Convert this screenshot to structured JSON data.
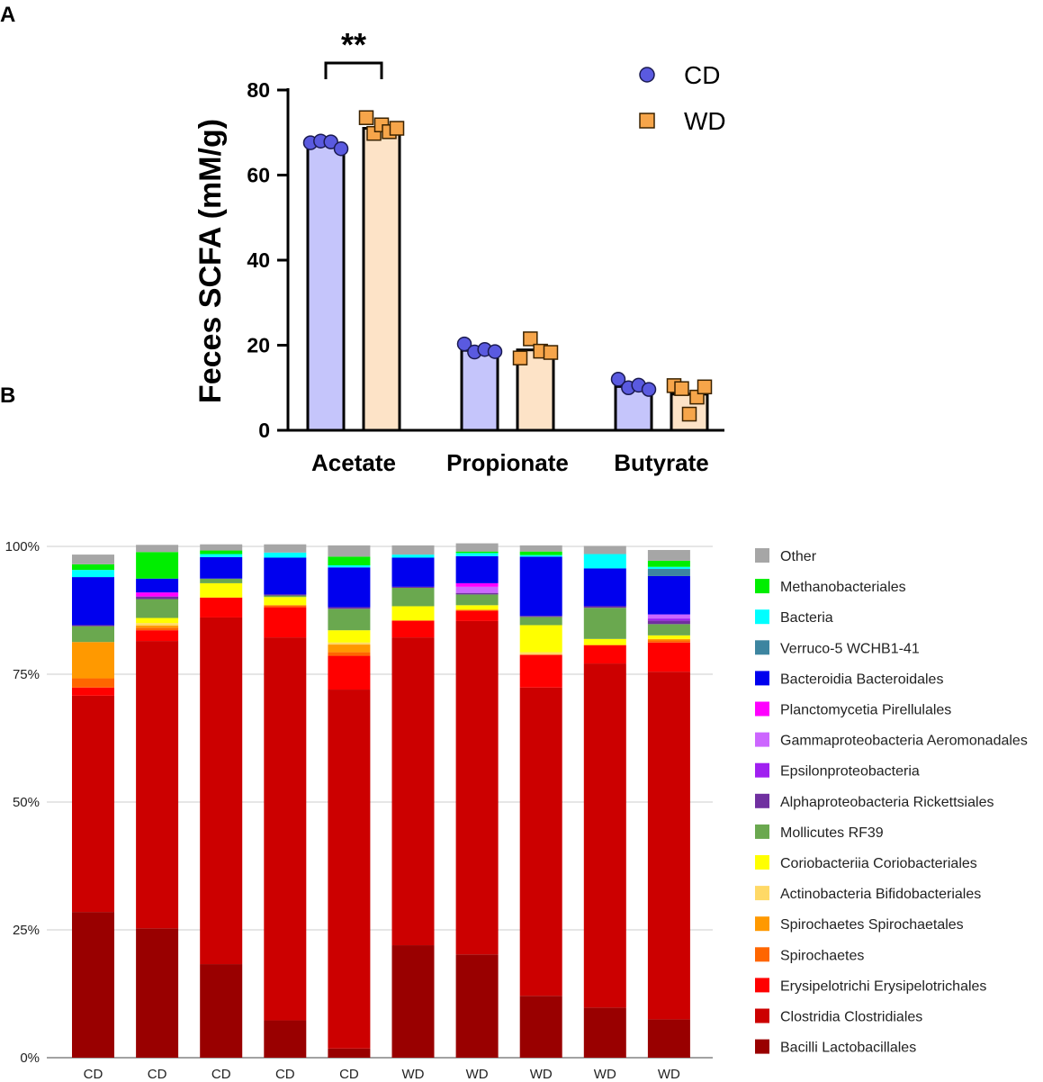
{
  "panel_labels": [
    "A",
    "B"
  ],
  "chart_data": [
    {
      "type": "bar",
      "id": "A",
      "ylabel": "Feces SCFA (mM/g)",
      "xlabel": "",
      "ylim": [
        0,
        80
      ],
      "yticks": [
        "0",
        "20",
        "40",
        "60",
        "80"
      ],
      "categories": [
        "Acetate",
        "Propionate",
        "Butyrate"
      ],
      "significance": {
        "category": "Acetate",
        "label": "**"
      },
      "legend_position": "top-right",
      "series": [
        {
          "name": "CD",
          "marker": "circle",
          "bar_color": "#c5c5fb",
          "point_color": "#5a5ae0",
          "values": [
            67.3,
            18.8,
            10.3
          ],
          "points": [
            [
              67.6,
              68.0,
              67.8,
              66.2
            ],
            [
              20.3,
              18.4,
              19.0,
              18.5
            ],
            [
              12.0,
              10.0,
              10.6,
              9.6
            ]
          ]
        },
        {
          "name": "WD",
          "marker": "square",
          "bar_color": "#fde3c7",
          "point_color": "#f6a54a",
          "values": [
            71.0,
            18.9,
            8.5
          ],
          "points": [
            [
              73.5,
              69.8,
              71.8,
              70.2,
              71.0
            ],
            [
              17.0,
              21.5,
              18.6,
              18.3
            ],
            [
              10.5,
              9.8,
              3.8,
              7.8,
              10.2
            ]
          ]
        }
      ]
    },
    {
      "type": "bar",
      "id": "B",
      "stacked": true,
      "ylabel": "",
      "xlabel": "",
      "ylim": [
        0,
        100
      ],
      "yticks": [
        "0%",
        "25%",
        "50%",
        "75%",
        "100%"
      ],
      "categories": [
        "CD",
        "CD",
        "CD",
        "CD",
        "CD",
        "WD",
        "WD",
        "WD",
        "WD",
        "WD"
      ],
      "legend_position": "right",
      "series": [
        {
          "name": "Bacilli Lactobacillales",
          "color": "#990000",
          "values": [
            28.5,
            25.3,
            18.3,
            7.3,
            1.8,
            22.0,
            20.2,
            12.1,
            9.8,
            7.5
          ]
        },
        {
          "name": "Clostridia Clostridiales",
          "color": "#cc0000",
          "values": [
            42.3,
            56.2,
            67.8,
            74.9,
            70.2,
            60.2,
            65.2,
            60.3,
            67.3,
            68.0
          ]
        },
        {
          "name": "Erysipelotrichi Erysipelotrichales",
          "color": "#ff0000",
          "values": [
            1.6,
            2.1,
            3.9,
            5.9,
            6.6,
            3.3,
            2.0,
            6.4,
            3.6,
            5.7
          ]
        },
        {
          "name": "Spirochaetes",
          "color": "#ff6600",
          "values": [
            1.8,
            0.5,
            0.0,
            0.4,
            0.7,
            0.0,
            0.2,
            0.0,
            0.0,
            0.4
          ]
        },
        {
          "name": "Spirochaetes Spirochaetales",
          "color": "#ff9900",
          "values": [
            7.1,
            0.4,
            0.0,
            0.0,
            1.5,
            0.0,
            0.0,
            0.0,
            0.0,
            0.3
          ]
        },
        {
          "name": "Actinobacteria Bifidobacteriales",
          "color": "#ffd966",
          "values": [
            0.0,
            0.5,
            0.0,
            0.0,
            0.4,
            0.0,
            0.0,
            0.5,
            0.0,
            0.0
          ]
        },
        {
          "name": "Coriobacteriia Coriobacteriales",
          "color": "#ffff00",
          "values": [
            0.0,
            1.0,
            2.8,
            1.6,
            2.4,
            2.8,
            0.9,
            5.3,
            1.2,
            0.7
          ]
        },
        {
          "name": "Mollicutes RF39",
          "color": "#6aa84f",
          "values": [
            3.1,
            3.7,
            0.9,
            0.3,
            4.2,
            3.6,
            2.1,
            1.6,
            6.1,
            2.2
          ]
        },
        {
          "name": "Alphaproteobacteria Rickettsiales",
          "color": "#7030a0",
          "values": [
            0.2,
            0.5,
            0.0,
            0.2,
            0.3,
            0.2,
            0.3,
            0.2,
            0.3,
            0.7
          ]
        },
        {
          "name": "Epsilonproteobacteria",
          "color": "#a020f0",
          "values": [
            0.0,
            0.0,
            0.0,
            0.0,
            0.0,
            0.0,
            0.0,
            0.0,
            0.0,
            0.4
          ]
        },
        {
          "name": "Gammaproteobacteria Aeromonadales",
          "color": "#cc66ff",
          "values": [
            0.0,
            0.0,
            0.0,
            0.0,
            0.0,
            0.0,
            1.2,
            0.0,
            0.0,
            0.8
          ]
        },
        {
          "name": "Planctomycetia Pirellulales",
          "color": "#ff00ff",
          "values": [
            0.0,
            0.8,
            0.0,
            0.0,
            0.0,
            0.0,
            0.7,
            0.0,
            0.0,
            0.0
          ]
        },
        {
          "name": "Bacteroidia Bacteroidales",
          "color": "#0000ee",
          "values": [
            9.4,
            2.7,
            4.2,
            7.2,
            7.8,
            5.7,
            5.3,
            11.6,
            7.4,
            7.5
          ]
        },
        {
          "name": "Verruco-5 WCHB1-41",
          "color": "#3d85a0",
          "values": [
            0.0,
            0.0,
            0.0,
            0.0,
            0.0,
            0.0,
            0.0,
            0.0,
            0.0,
            1.4
          ]
        },
        {
          "name": "Bacteria",
          "color": "#00ffff",
          "values": [
            1.4,
            0.0,
            0.6,
            1.0,
            0.4,
            0.6,
            0.6,
            0.3,
            2.8,
            0.4
          ]
        },
        {
          "name": "Methanobacteriales",
          "color": "#00ee00",
          "values": [
            1.1,
            5.2,
            0.7,
            0.0,
            1.7,
            0.0,
            0.3,
            0.7,
            0.0,
            1.2
          ]
        },
        {
          "name": "Other",
          "color": "#a6a6a6",
          "values": [
            1.9,
            1.4,
            1.2,
            1.6,
            2.2,
            1.8,
            1.6,
            1.2,
            1.6,
            2.1
          ]
        }
      ]
    }
  ]
}
